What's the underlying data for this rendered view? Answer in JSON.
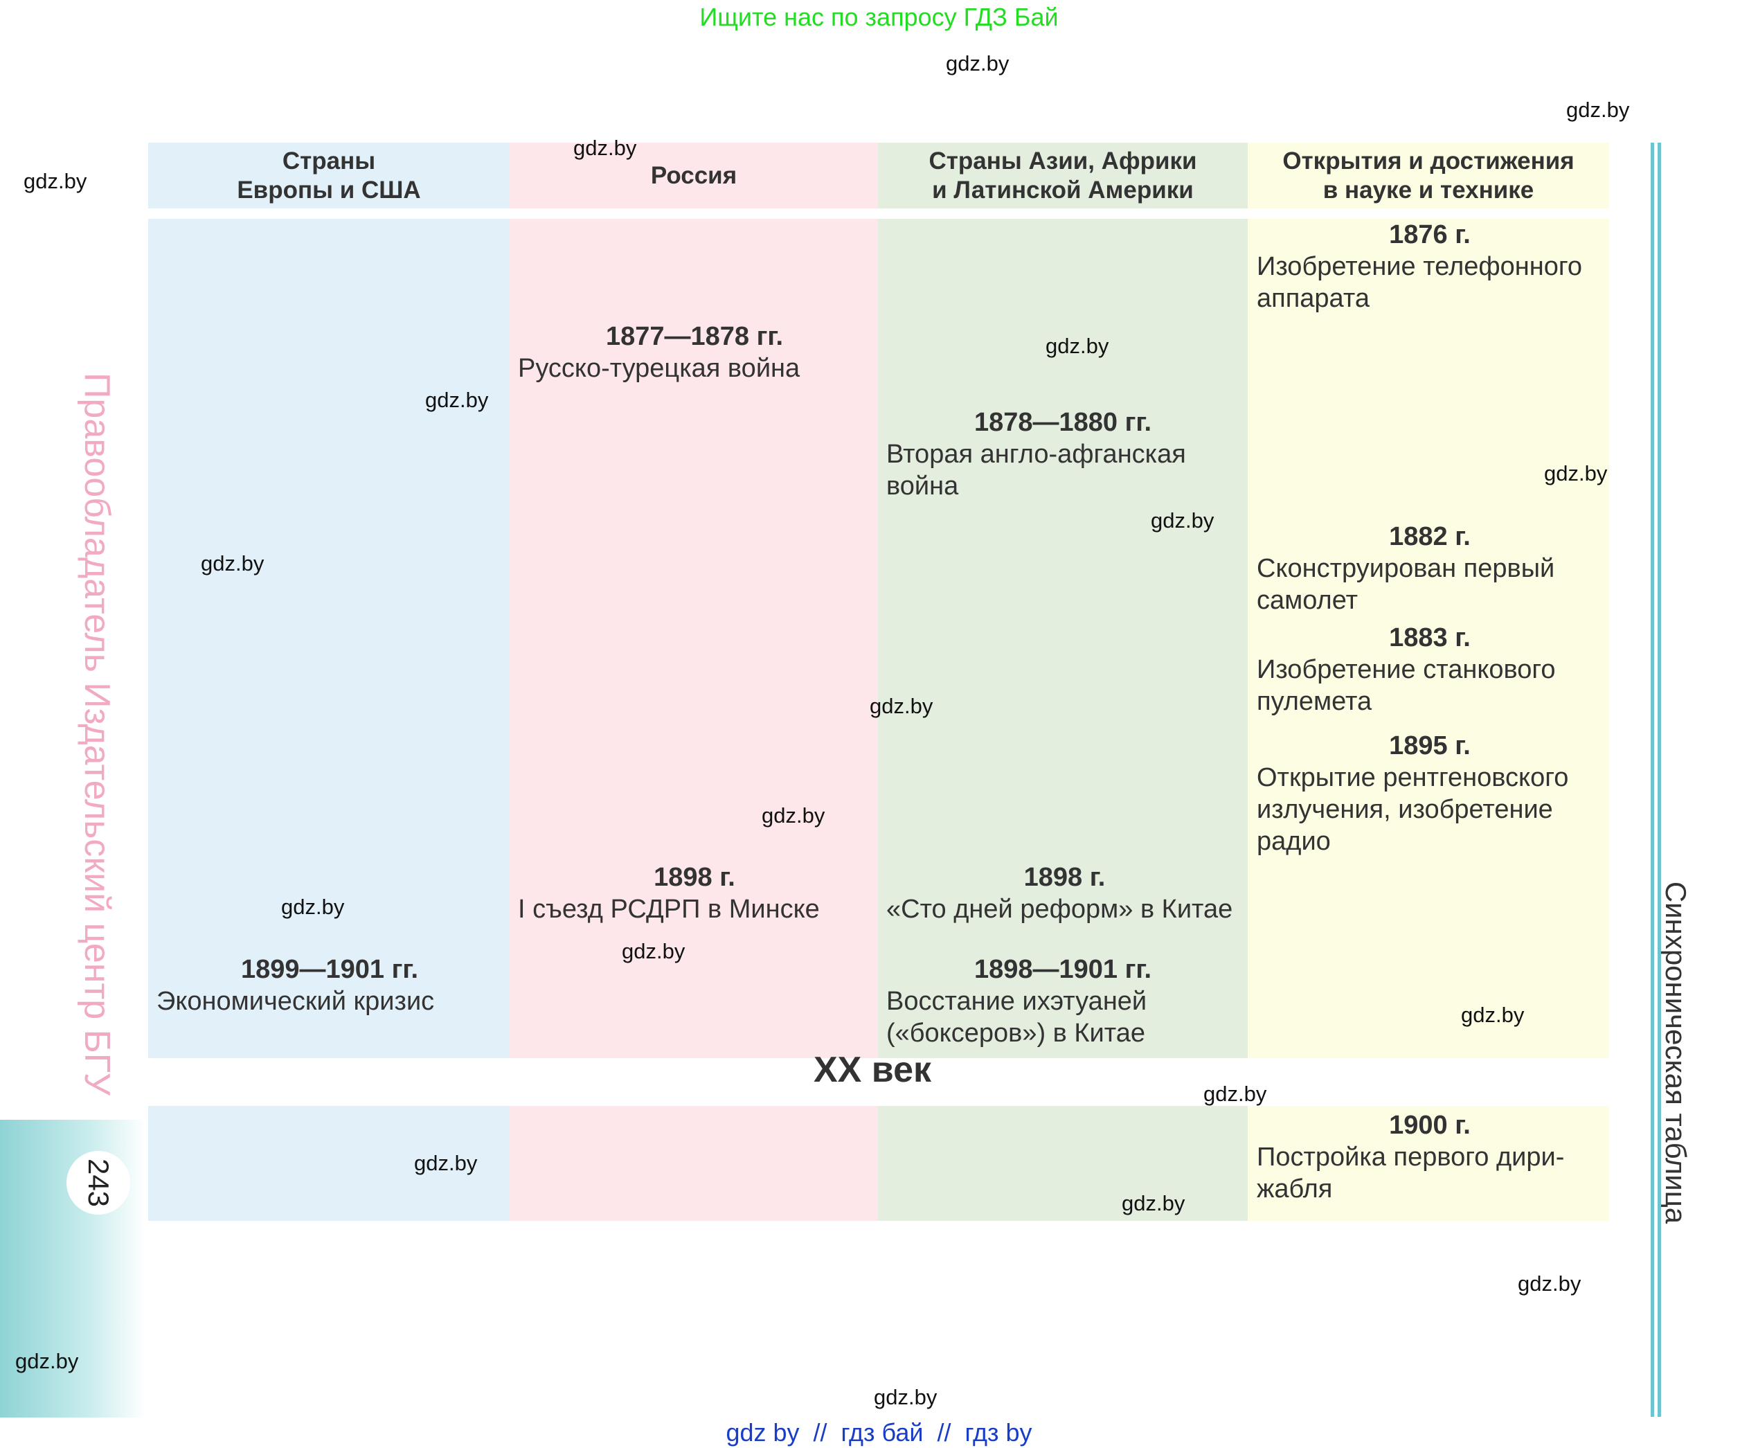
{
  "banner": "Ищите нас по запросу ГДЗ Бай",
  "watermark": "gdz.by",
  "headers": {
    "europe": "Страны\nЕвропы и США",
    "russia": "Россия",
    "asia": "Страны Азии, Африки\nи Латинской Америки",
    "science": "Открытия и достижения\nв науке и технике"
  },
  "entries": {
    "russia_1877": {
      "year": "1877—1878 гг.",
      "text": "Русско-турецкая война"
    },
    "asia_1878": {
      "year": "1878—1880 гг.",
      "text": "Вторая англо-афганская\nвойна"
    },
    "sci_1876": {
      "year": "1876 г.",
      "text": "Изобретение телефонного\nаппарата"
    },
    "sci_1882": {
      "year": "1882 г.",
      "text": "Сконструирован первый\nсамолет"
    },
    "sci_1883": {
      "year": "1883 г.",
      "text": "Изобретение станкового\nпулемета"
    },
    "sci_1895": {
      "year": "1895 г.",
      "text": "Открытие рентгеновского\nизлучения, изобретение\nрадио"
    },
    "russia_1898": {
      "year": "1898 г.",
      "text": "I съезд РСДРП в Минске"
    },
    "asia_1898": {
      "year": "1898 г.",
      "text": "«Сто дней реформ» в Китае"
    },
    "europe_1899": {
      "year": "1899—1901 гг.",
      "text": "Экономический кризис"
    },
    "asia_1898_1901": {
      "year": "1898—1901 гг.",
      "text": "Восстание ихэтуаней\n(«боксеров») в Китае"
    },
    "sci_1900": {
      "year": "1900 г.",
      "text": "Постройка первого дири-\nжабля"
    }
  },
  "century": "XX век",
  "side_left": "Правообладатель Издательский центр БГУ",
  "side_right": "Синхроническая таблица",
  "page_number": "243",
  "bottom_links": "gdz by  //  гдз бай  //  гдз by",
  "colors": {
    "europe": "#e2f0f9",
    "russia": "#fde7ea",
    "asia": "#e4eedf",
    "science": "#fdfde4",
    "accent_line": "#6dc4cf",
    "banner": "#22dd22",
    "links": "#1a3dc8"
  }
}
